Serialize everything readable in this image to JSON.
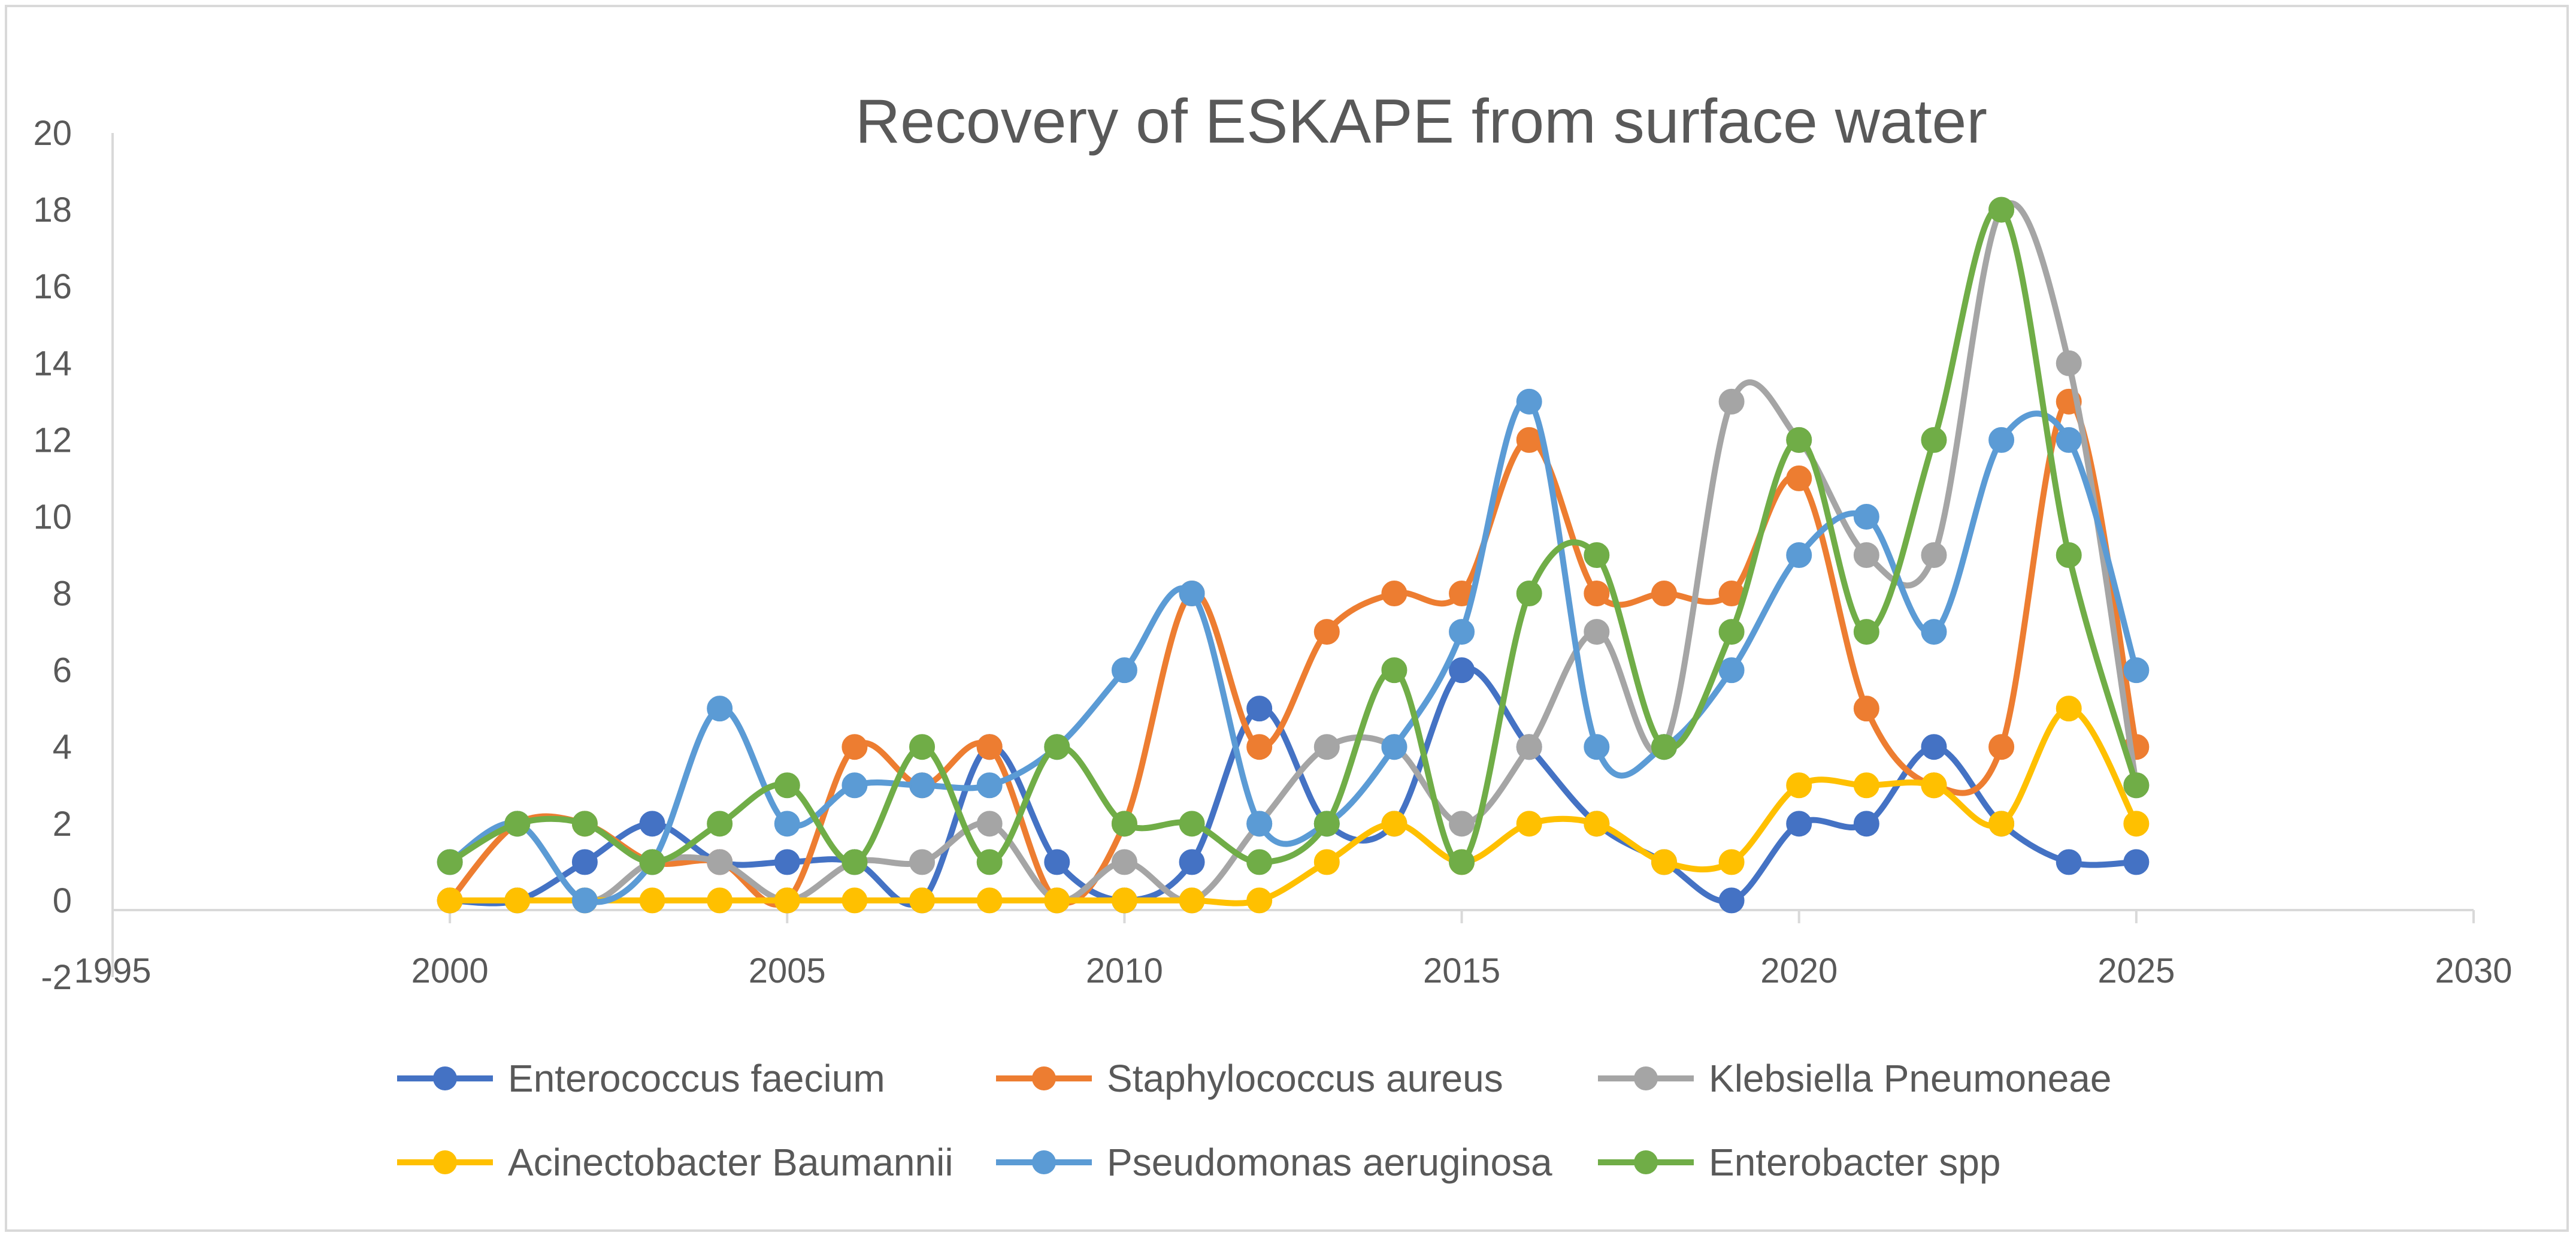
{
  "chart_data": {
    "type": "line",
    "smooth": true,
    "title": "Recovery of  ESKAPE from surface water",
    "xlabel": "",
    "ylabel": "",
    "xlim": [
      1995,
      2030
    ],
    "ylim": [
      -2,
      20
    ],
    "x_ticks": [
      1995,
      2000,
      2005,
      2010,
      2015,
      2020,
      2025,
      2030
    ],
    "y_ticks": [
      -2,
      0,
      2,
      4,
      6,
      8,
      10,
      12,
      14,
      16,
      18,
      20
    ],
    "grid": false,
    "legend_position": "bottom",
    "x": [
      2000,
      2001,
      2002,
      2003,
      2004,
      2005,
      2006,
      2007,
      2008,
      2009,
      2010,
      2011,
      2012,
      2013,
      2014,
      2015,
      2016,
      2017,
      2018,
      2019,
      2020,
      2021,
      2022,
      2023,
      2024,
      2025
    ],
    "series": [
      {
        "name": "Enterococcus faecium",
        "color": "#4472C4",
        "values": [
          0,
          0,
          1,
          2,
          1,
          1,
          1,
          0,
          4,
          1,
          0,
          1,
          5,
          2,
          2,
          6,
          4,
          2,
          1,
          0,
          2,
          2,
          4,
          2,
          1,
          1
        ]
      },
      {
        "name": "Staphylococcus aureus",
        "color": "#ED7D31",
        "values": [
          0,
          2,
          2,
          1,
          1,
          0,
          4,
          3,
          4,
          0,
          2,
          8,
          4,
          7,
          8,
          8,
          12,
          8,
          8,
          8,
          11,
          5,
          3,
          4,
          13,
          4
        ]
      },
      {
        "name": "Klebsiella Pneumoneae",
        "color": "#A5A5A5",
        "values": [
          1,
          2,
          0,
          1,
          1,
          0,
          1,
          1,
          2,
          0,
          1,
          0,
          2,
          4,
          4,
          2,
          4,
          7,
          4,
          13,
          12,
          9,
          9,
          18,
          14,
          3
        ]
      },
      {
        "name": "Acinectobacter Baumannii",
        "color": "#FFC000",
        "values": [
          0,
          0,
          0,
          0,
          0,
          0,
          0,
          0,
          0,
          0,
          0,
          0,
          0,
          1,
          2,
          1,
          2,
          2,
          1,
          1,
          3,
          3,
          3,
          2,
          5,
          2
        ]
      },
      {
        "name": "Pseudomonas aeruginosa",
        "color": "#5B9BD5",
        "values": [
          1,
          2,
          0,
          1,
          5,
          2,
          3,
          3,
          3,
          4,
          6,
          8,
          2,
          2,
          4,
          7,
          13,
          4,
          4,
          6,
          9,
          10,
          7,
          12,
          12,
          6
        ]
      },
      {
        "name": "Enterobacter spp",
        "color": "#70AD47",
        "values": [
          1,
          2,
          2,
          1,
          2,
          3,
          1,
          4,
          1,
          4,
          2,
          2,
          1,
          2,
          6,
          1,
          8,
          9,
          4,
          7,
          12,
          7,
          12,
          18,
          9,
          3
        ]
      }
    ]
  }
}
